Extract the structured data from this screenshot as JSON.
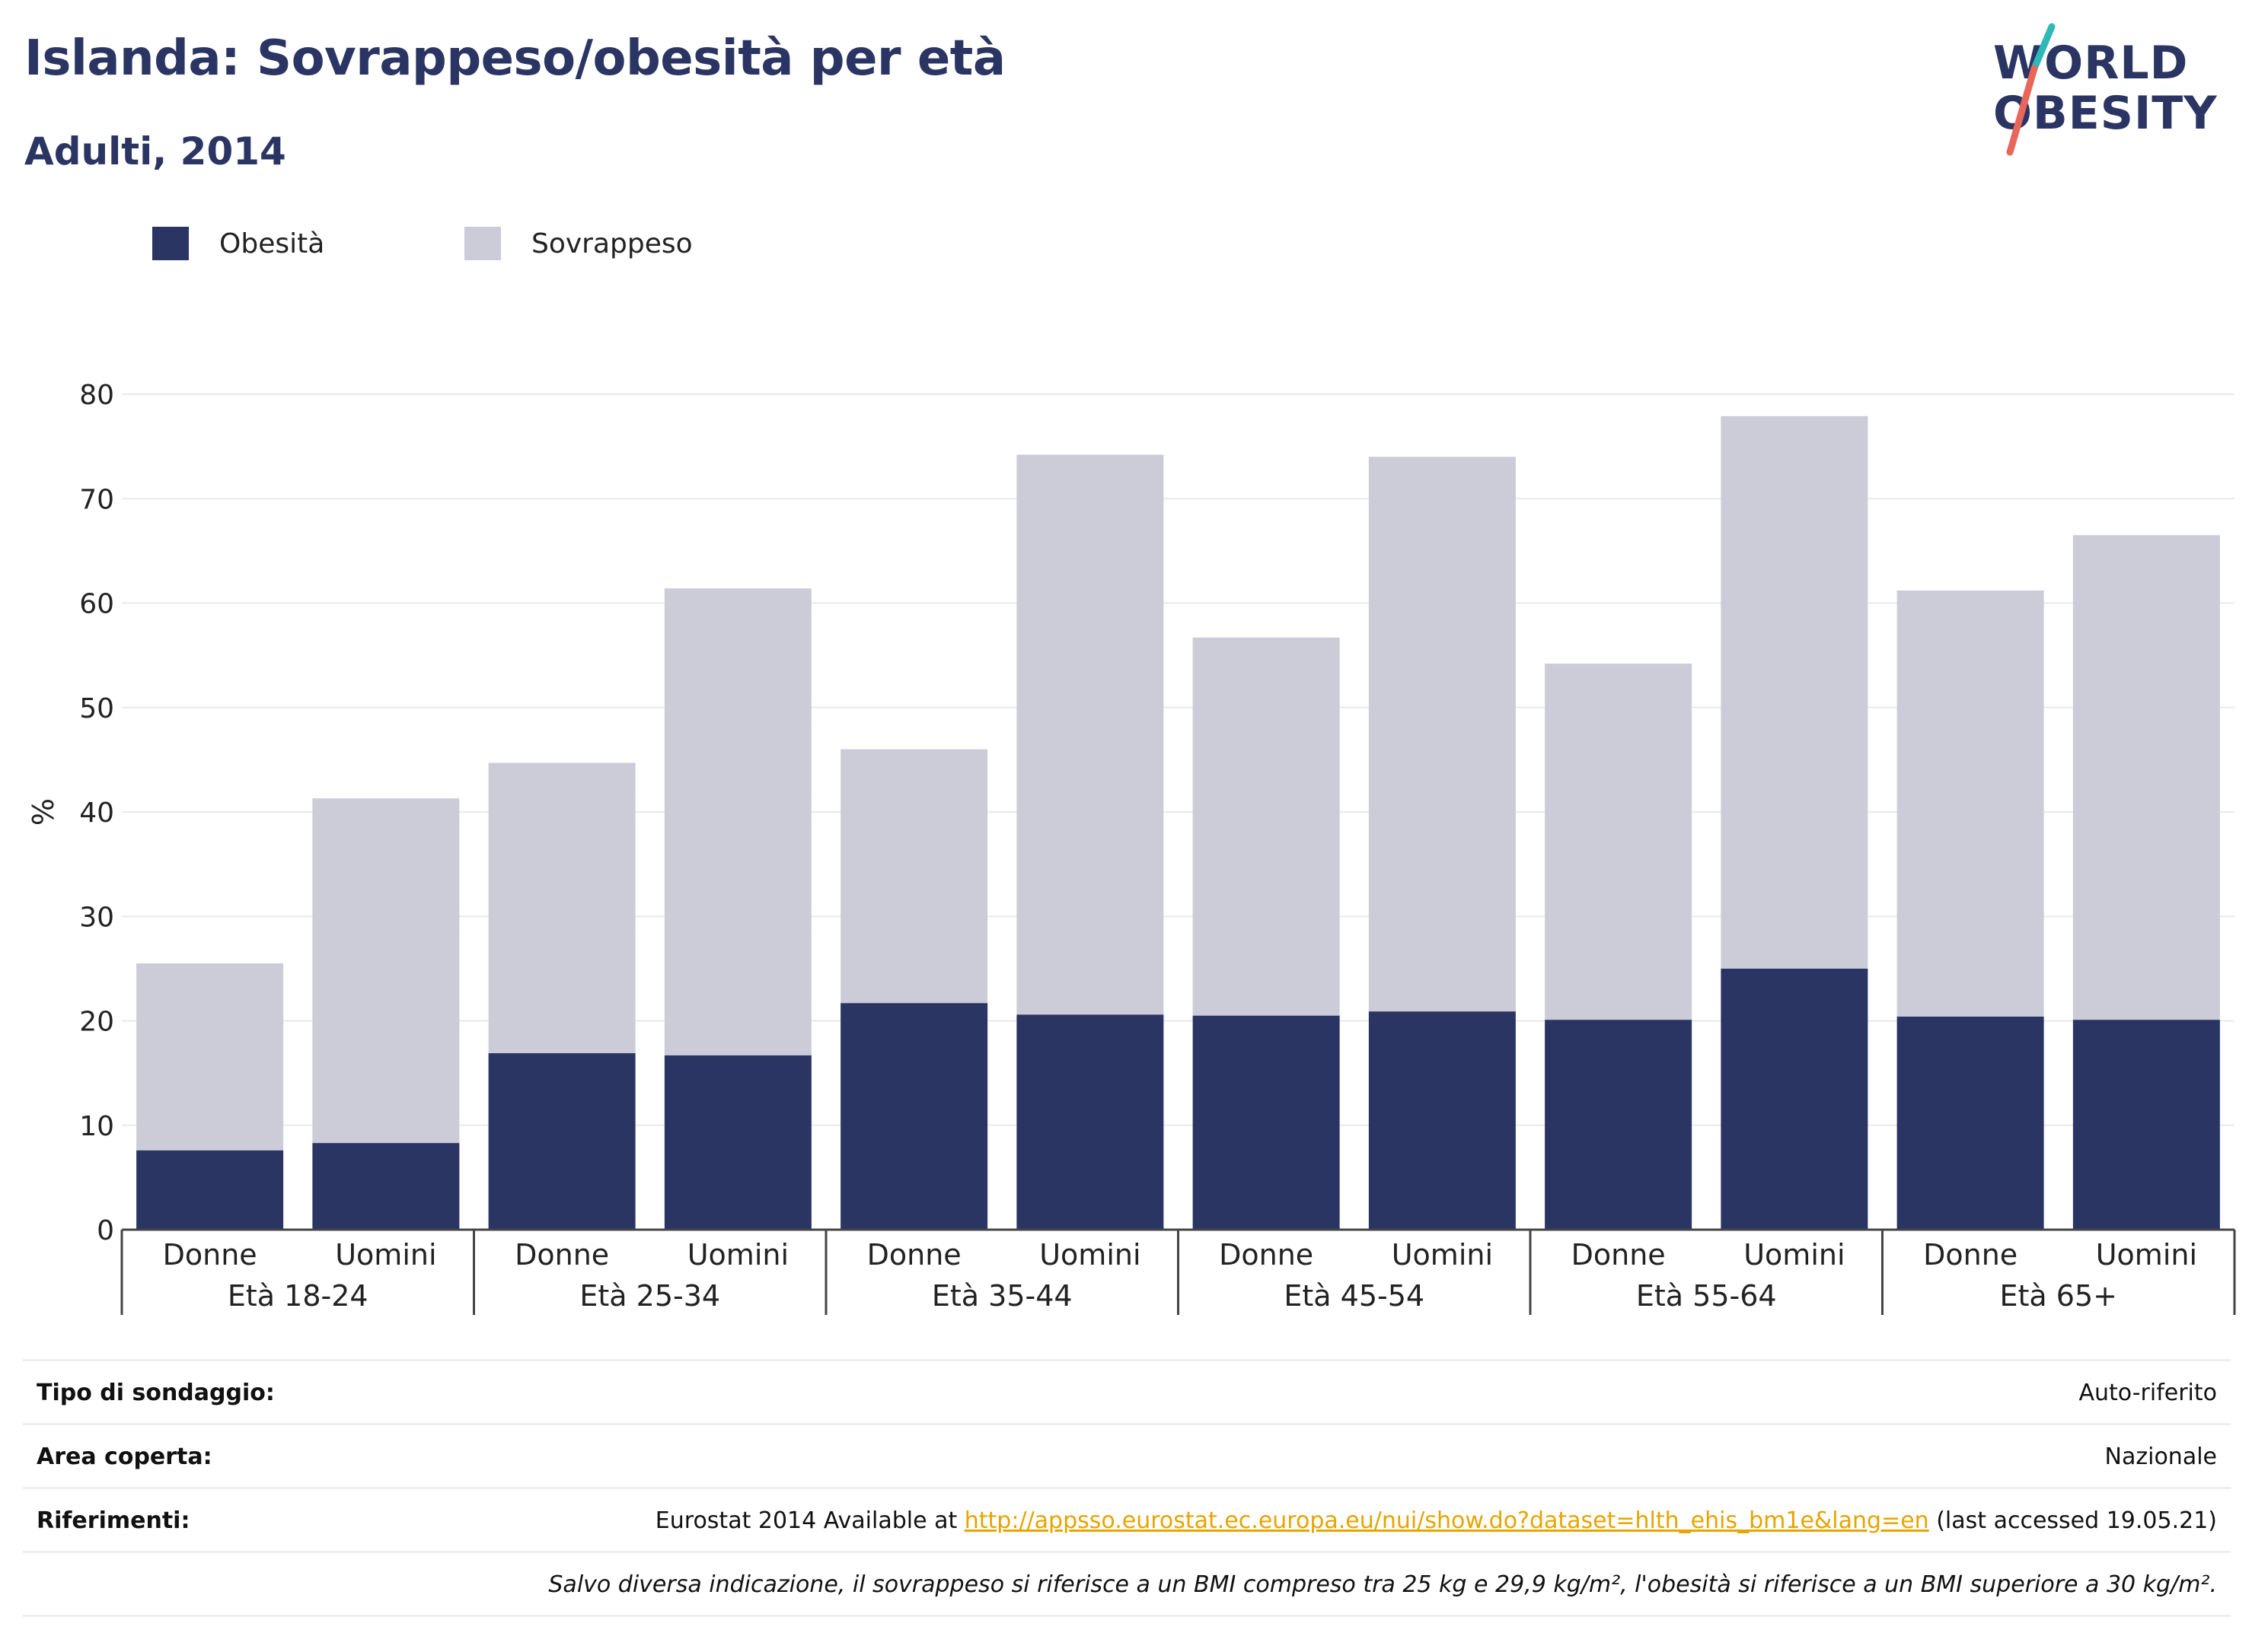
{
  "header": {
    "title": "Islanda: Sovrappeso/obesità per età",
    "subtitle": "Adulti, 2014"
  },
  "logo": {
    "line1": "WORLD",
    "line2": "OBESITY"
  },
  "colors": {
    "obesity": "#2a3563",
    "overweight": "#cbccd8",
    "accent_teal": "#2fb8b8",
    "accent_red": "#e8675a",
    "link": "#e8a400"
  },
  "chart_data": {
    "type": "bar",
    "stacked": true,
    "title": "Islanda: Sovrappeso/obesità per età",
    "subtitle": "Adulti, 2014",
    "ylabel": "%",
    "xlabel": "",
    "ylim": [
      0,
      80
    ],
    "yticks": [
      0,
      10,
      20,
      30,
      40,
      50,
      60,
      70,
      80
    ],
    "grid": true,
    "legend_position": "top-left",
    "groups": [
      "Età 18-24",
      "Età 25-34",
      "Età 35-44",
      "Età 45-54",
      "Età 55-64",
      "Età 65+"
    ],
    "categories": [
      "Donne",
      "Uomini",
      "Donne",
      "Uomini",
      "Donne",
      "Uomini",
      "Donne",
      "Uomini",
      "Donne",
      "Uomini",
      "Donne",
      "Uomini"
    ],
    "series": [
      {
        "name": "Obesità",
        "values": [
          7.6,
          8.3,
          16.9,
          16.7,
          21.7,
          20.6,
          20.5,
          20.9,
          20.1,
          25.0,
          20.4,
          20.1
        ]
      },
      {
        "name": "Sovrappeso",
        "values": [
          17.9,
          33.0,
          27.8,
          44.7,
          24.3,
          53.6,
          36.2,
          53.1,
          34.1,
          52.9,
          40.8,
          46.4
        ]
      }
    ]
  },
  "footer": {
    "survey_label": "Tipo di sondaggio:",
    "survey_value": "Auto-riferito",
    "area_label": "Area coperta:",
    "area_value": "Nazionale",
    "refs_label": "Riferimenti:",
    "refs_prefix": "Eurostat 2014 Available at ",
    "refs_link": "http://appsso.eurostat.ec.europa.eu/nui/show.do?dataset=hlth_ehis_bm1e&lang=en",
    "refs_suffix": " (last accessed 19.05.21)",
    "note": "Salvo diversa indicazione, il sovrappeso si riferisce a un BMI compreso tra 25 kg e 29,9 kg/m², l'obesità si riferisce a un BMI superiore a 30 kg/m²."
  }
}
